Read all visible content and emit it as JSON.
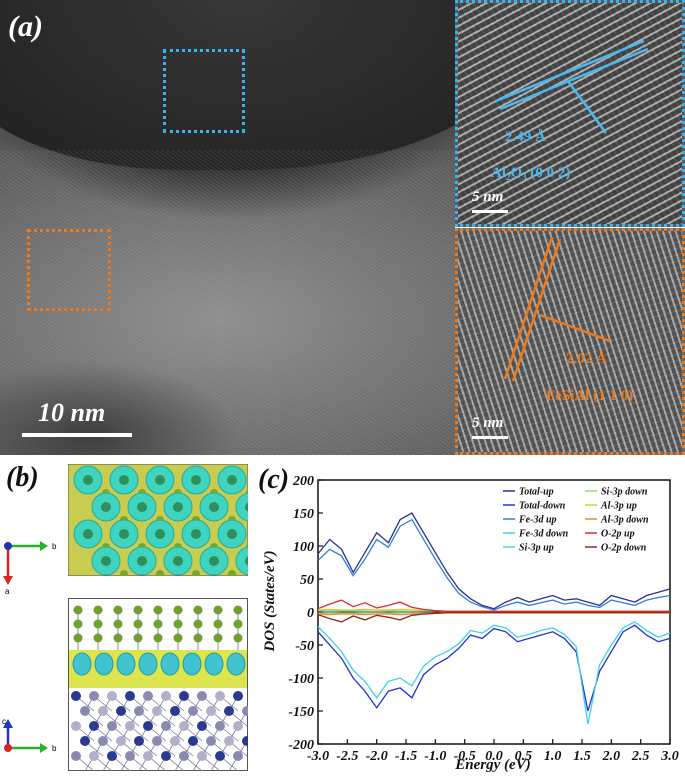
{
  "panel_a": {
    "label": "(a)",
    "scale_bar": "10 nm",
    "inset_top": {
      "d_spacing": "2.49 Å",
      "plane": "Al₂O₃ (0 0 2)",
      "scale_bar": "5 nm"
    },
    "inset_bottom": {
      "d_spacing": "2.02 Å",
      "plane": "FeSiAl (1 1 0)",
      "scale_bar": "5 nm"
    },
    "colors": {
      "top_box": "#3ab4ee",
      "bottom_box": "#f07a1a"
    }
  },
  "panel_b": {
    "label": "(b)",
    "axes_top": {
      "b": "b",
      "a": "a"
    },
    "axes_bottom": {
      "c": "c",
      "b": "b"
    }
  },
  "panel_c": {
    "label": "(c)"
  },
  "chart_data": {
    "type": "line",
    "xlabel": "Energy (eV)",
    "ylabel": "DOS (States/eV)",
    "xlim": [
      -3.0,
      3.0
    ],
    "ylim": [
      -200,
      200
    ],
    "xticks": [
      "-3.0",
      "-2.5",
      "-2.0",
      "-1.5",
      "-1.0",
      "-0.5",
      "0.0",
      "0.5",
      "1.0",
      "1.5",
      "2.0",
      "2.5",
      "3.0"
    ],
    "yticks": [
      "200",
      "150",
      "100",
      "50",
      "0",
      "-50",
      "-100",
      "-150",
      "-200"
    ],
    "legend_position": "top-right",
    "x": [
      -3.0,
      -2.8,
      -2.6,
      -2.4,
      -2.2,
      -2.0,
      -1.8,
      -1.6,
      -1.4,
      -1.2,
      -1.0,
      -0.8,
      -0.6,
      -0.4,
      -0.2,
      0.0,
      0.2,
      0.4,
      0.6,
      0.8,
      1.0,
      1.2,
      1.4,
      1.6,
      1.8,
      2.0,
      2.2,
      2.4,
      2.6,
      2.8,
      3.0
    ],
    "series": [
      {
        "name": "Total-up",
        "color": "#2b2f8f",
        "values": [
          88,
          110,
          95,
          60,
          90,
          120,
          105,
          140,
          150,
          120,
          90,
          60,
          35,
          20,
          10,
          5,
          15,
          22,
          15,
          20,
          25,
          18,
          20,
          15,
          10,
          25,
          20,
          15,
          25,
          30,
          35
        ]
      },
      {
        "name": "Total-down",
        "color": "#2233cc",
        "values": [
          -30,
          -50,
          -70,
          -100,
          -120,
          -145,
          -120,
          -115,
          -130,
          -95,
          -80,
          -70,
          -55,
          -35,
          -40,
          -25,
          -30,
          -45,
          -40,
          -35,
          -30,
          -40,
          -60,
          -150,
          -90,
          -60,
          -30,
          -20,
          -35,
          -45,
          -40
        ]
      },
      {
        "name": "Fe-3d up",
        "color": "#2f7fd8",
        "values": [
          78,
          95,
          85,
          55,
          80,
          110,
          98,
          130,
          140,
          110,
          80,
          52,
          28,
          15,
          8,
          3,
          10,
          15,
          10,
          14,
          18,
          12,
          15,
          10,
          7,
          18,
          14,
          10,
          18,
          22,
          25
        ]
      },
      {
        "name": "Fe-3d down",
        "color": "#3fd0ef",
        "values": [
          -22,
          -40,
          -60,
          -88,
          -105,
          -130,
          -105,
          -100,
          -112,
          -82,
          -68,
          -60,
          -48,
          -28,
          -32,
          -20,
          -24,
          -38,
          -34,
          -28,
          -24,
          -34,
          -52,
          -170,
          -80,
          -50,
          -24,
          -15,
          -28,
          -38,
          -32
        ]
      },
      {
        "name": "Si-3p up",
        "color": "#4fe0c8",
        "values": [
          2,
          3,
          2,
          2,
          3,
          3,
          2,
          3,
          3,
          2,
          2,
          1,
          1,
          1,
          1,
          1,
          1,
          1,
          1,
          1,
          1,
          1,
          1,
          1,
          1,
          1,
          1,
          1,
          1,
          1,
          1
        ]
      },
      {
        "name": "Si-3p down",
        "color": "#8ee06b",
        "values": [
          -2,
          -3,
          -2,
          -2,
          -3,
          -3,
          -2,
          -3,
          -3,
          -2,
          -2,
          -1,
          -1,
          -1,
          -1,
          -1,
          -1,
          -1,
          -1,
          -1,
          -1,
          -1,
          -1,
          -1,
          -1,
          -1,
          -1,
          -1,
          -1,
          -1,
          -1
        ]
      },
      {
        "name": "Al-3p up",
        "color": "#d8cf20",
        "values": [
          3,
          4,
          3,
          3,
          4,
          3,
          3,
          4,
          3,
          3,
          2,
          1,
          1,
          1,
          1,
          1,
          1,
          1,
          1,
          1,
          1,
          1,
          1,
          1,
          1,
          1,
          1,
          1,
          1,
          1,
          1
        ]
      },
      {
        "name": "Al-3p down",
        "color": "#f08a1a",
        "values": [
          -3,
          -4,
          -3,
          -3,
          -4,
          -3,
          -3,
          -4,
          -3,
          -3,
          -2,
          -1,
          -1,
          -1,
          -1,
          -1,
          -1,
          -1,
          -1,
          -1,
          -1,
          -1,
          -1,
          -1,
          -1,
          -1,
          -1,
          -1,
          -1,
          -1,
          -1
        ]
      },
      {
        "name": "O-2p up",
        "color": "#e02a2a",
        "values": [
          5,
          12,
          18,
          8,
          14,
          6,
          10,
          15,
          7,
          4,
          2,
          1,
          1,
          1,
          1,
          1,
          1,
          1,
          1,
          1,
          1,
          1,
          1,
          1,
          1,
          1,
          1,
          1,
          1,
          1,
          1
        ]
      },
      {
        "name": "O-2p down",
        "color": "#8a2a1a",
        "values": [
          -4,
          -10,
          -15,
          -6,
          -12,
          -5,
          -8,
          -12,
          -5,
          -3,
          -2,
          -1,
          -1,
          -1,
          -1,
          -1,
          -1,
          -1,
          -1,
          -1,
          -1,
          -1,
          -1,
          -1,
          -1,
          -1,
          -1,
          -1,
          -1,
          -1,
          -1
        ]
      }
    ]
  }
}
